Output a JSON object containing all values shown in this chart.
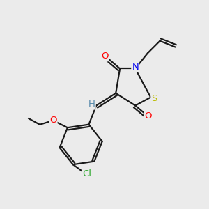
{
  "bg_color": "#ebebeb",
  "bond_color": "#1a1a1a",
  "atom_colors": {
    "O": "#ff0000",
    "N": "#0000ee",
    "S": "#bbbb00",
    "Cl": "#33aa33",
    "H": "#5588aa"
  },
  "figsize": [
    3.0,
    3.0
  ],
  "dpi": 100
}
